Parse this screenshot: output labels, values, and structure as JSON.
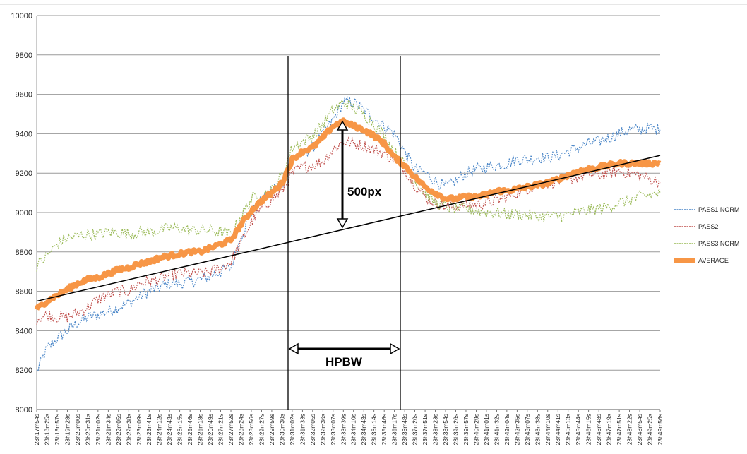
{
  "chart_data": {
    "type": "line",
    "title": "",
    "xlabel": "",
    "ylabel": "",
    "ylim": [
      8000,
      10000
    ],
    "yticks": [
      8000,
      8200,
      8400,
      8600,
      8800,
      9000,
      9200,
      9400,
      9600,
      9800,
      10000
    ],
    "grid": "horizontal",
    "legend_position": "right",
    "x_tick_labels": [
      "23h17m54s",
      "23h18m25s",
      "23h18m57s",
      "23h19m28s",
      "23h20m00s",
      "23h20m31s",
      "23h21m02s",
      "23h21m34s",
      "23h22m05s",
      "23h22m38s",
      "23h23m09s",
      "23h23m41s",
      "23h24m12s",
      "23h24m43s",
      "23h25m15s",
      "23h25m46s",
      "23h26m18s",
      "23h26m49s",
      "23h27m21s",
      "23h27m52s",
      "23h28m24s",
      "23h28m56s",
      "23h29m27s",
      "23h29m59s",
      "23h30m30s",
      "23h31m02s",
      "23h31m33s",
      "23h32m05s",
      "23h32m36s",
      "23h33m07s",
      "23h33m39s",
      "23h34m10s",
      "23h34m43s",
      "23h35m14s",
      "23h35m46s",
      "23h36m17s",
      "23h36m48s",
      "23h37m20s",
      "23h37m51s",
      "23h38m23s",
      "23h38m54s",
      "23h39m26s",
      "23h39m57s",
      "23h40m29s",
      "23h41m01s",
      "23h41m32s",
      "23h42m04s",
      "23h42m35s",
      "23h43m07s",
      "23h43m38s",
      "23h44m10s",
      "23h44m41s",
      "23h45m13s",
      "23h45m44s",
      "23h46m15s",
      "23h46m48s",
      "23h47m19s",
      "23h47m51s",
      "23h48m22s",
      "23h48m54s",
      "23h49m25s",
      "23h49m56s"
    ],
    "series": [
      {
        "name": "PASS1 NORM",
        "color": "#4a86c8",
        "style": "dotted",
        "values": [
          8190,
          8310,
          8360,
          8400,
          8440,
          8470,
          8480,
          8500,
          8520,
          8540,
          8570,
          8600,
          8620,
          8640,
          8640,
          8650,
          8660,
          8680,
          8700,
          8720,
          8880,
          9000,
          9060,
          9120,
          9150,
          9260,
          9300,
          9330,
          9400,
          9470,
          9560,
          9560,
          9520,
          9480,
          9440,
          9400,
          9310,
          9220,
          9200,
          9160,
          9130,
          9160,
          9200,
          9220,
          9230,
          9240,
          9250,
          9270,
          9270,
          9280,
          9280,
          9290,
          9310,
          9330,
          9350,
          9360,
          9380,
          9400,
          9420,
          9420,
          9430,
          9420
        ]
      },
      {
        "name": "PASS2",
        "color": "#c0504d",
        "style": "dotted",
        "values": [
          8460,
          8480,
          8470,
          8470,
          8490,
          8520,
          8560,
          8580,
          8600,
          8600,
          8640,
          8650,
          8660,
          8680,
          8690,
          8690,
          8690,
          8700,
          8720,
          8750,
          8850,
          8950,
          9020,
          9070,
          9110,
          9200,
          9230,
          9240,
          9260,
          9320,
          9360,
          9350,
          9340,
          9320,
          9300,
          9270,
          9220,
          9140,
          9080,
          9050,
          9030,
          9030,
          9040,
          9040,
          9050,
          9060,
          9080,
          9100,
          9120,
          9140,
          9150,
          9160,
          9170,
          9180,
          9190,
          9190,
          9200,
          9210,
          9200,
          9190,
          9170,
          9150
        ]
      },
      {
        "name": "PASS3 NORM",
        "color": "#9bbb59",
        "style": "dotted",
        "values": [
          8730,
          8780,
          8840,
          8870,
          8880,
          8890,
          8890,
          8900,
          8900,
          8890,
          8900,
          8900,
          8910,
          8920,
          8920,
          8910,
          8910,
          8910,
          8900,
          8890,
          8980,
          9070,
          9090,
          9110,
          9190,
          9330,
          9360,
          9390,
          9450,
          9520,
          9560,
          9530,
          9500,
          9450,
          9390,
          9310,
          9240,
          9160,
          9100,
          9050,
          9030,
          9020,
          9020,
          9010,
          9000,
          9000,
          8990,
          8990,
          8990,
          8980,
          8980,
          8980,
          8990,
          9000,
          9010,
          9020,
          9030,
          9050,
          9060,
          9080,
          9090,
          9100
        ]
      },
      {
        "name": "AVERAGE",
        "color": "#f79646",
        "style": "solid",
        "values": [
          8510,
          8550,
          8580,
          8610,
          8640,
          8660,
          8670,
          8690,
          8710,
          8720,
          8740,
          8750,
          8770,
          8780,
          8790,
          8800,
          8800,
          8820,
          8840,
          8860,
          8940,
          9010,
          9060,
          9100,
          9150,
          9270,
          9310,
          9330,
          9380,
          9440,
          9460,
          9440,
          9420,
          9390,
          9350,
          9280,
          9240,
          9180,
          9130,
          9100,
          9070,
          9070,
          9080,
          9080,
          9090,
          9110,
          9110,
          9120,
          9130,
          9140,
          9150,
          9170,
          9190,
          9210,
          9220,
          9230,
          9240,
          9250,
          9250,
          9250,
          9250,
          9250
        ]
      }
    ],
    "trend_line": {
      "x_start": "23h17m54s",
      "y_start": 8550,
      "x_end": "23h49m56s",
      "y_end": 9290
    },
    "annotations": {
      "peak_label": "500px",
      "width_label": "HPBW"
    }
  }
}
